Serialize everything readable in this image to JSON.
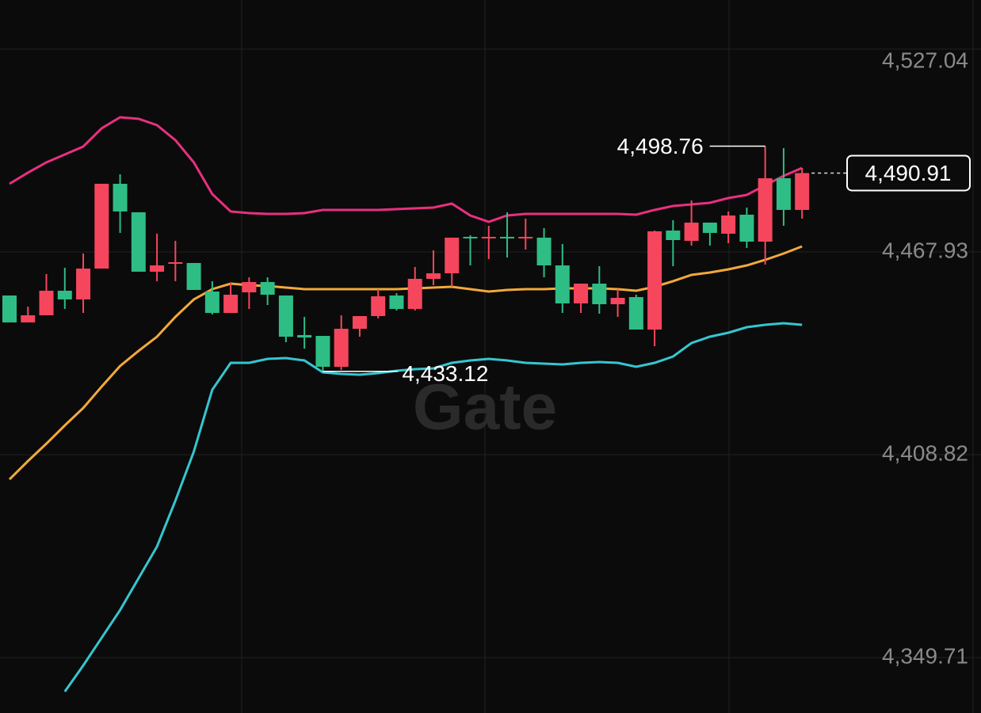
{
  "chart_data": {
    "type": "candlestick",
    "open": [
      4447.38,
      4449.46,
      4456.62,
      4454.08,
      4463.08,
      4487.79,
      4479.71,
      4462.16,
      4464.0,
      4464.93,
      4456.85,
      4450.15,
      4455.46,
      4459.16,
      4455.46,
      4443.22,
      4442.99,
      4434.45,
      4445.53,
      4449.23,
      4455.0,
      4451.31,
      4460.08,
      4461.7,
      4472.09,
      4471.86,
      4472.32,
      4471.86,
      4472.32,
      4464.0,
      4452.92,
      4458.69,
      4452.69,
      4454.54,
      4445.3,
      4473.93,
      4471.39,
      4476.47,
      4473.47,
      4478.55,
      4470.93,
      4489.4,
      4480.17,
      4490.91
    ],
    "high": [
      4455.23,
      4452.0,
      4461.46,
      4463.31,
      4467.47,
      4487.79,
      4490.56,
      4479.48,
      4473.24,
      4471.16,
      4464.7,
      4459.39,
      4458.92,
      4460.54,
      4460.54,
      4455.23,
      4449.0,
      4443.45,
      4449.46,
      4449.23,
      4457.08,
      4455.92,
      4463.54,
      4468.39,
      4472.09,
      4472.78,
      4475.55,
      4479.48,
      4477.63,
      4474.86,
      4470.24,
      4458.69,
      4463.77,
      4457.08,
      4455.46,
      4474.16,
      4477.17,
      4482.94,
      4476.47,
      4479.71,
      4480.86,
      4498.76,
      4498.18,
      4492.41
    ],
    "low": [
      4447.38,
      4447.38,
      4449.46,
      4451.31,
      4450.15,
      4463.08,
      4473.47,
      4462.16,
      4459.39,
      4459.39,
      4456.85,
      4449.69,
      4450.15,
      4451.31,
      4452.46,
      4441.61,
      4439.76,
      4433.12,
      4433.53,
      4443.22,
      4448.53,
      4450.84,
      4450.84,
      4458.23,
      4457.77,
      4464.0,
      4465.85,
      4466.31,
      4468.62,
      4460.54,
      4450.15,
      4450.15,
      4449.92,
      4449.0,
      4445.3,
      4440.45,
      4463.77,
      4469.78,
      4469.78,
      4470.47,
      4469.08,
      4464.24,
      4475.55,
      4477.63
    ],
    "close": [
      4455.23,
      4447.38,
      4449.46,
      4456.62,
      4454.08,
      4463.08,
      4487.79,
      4479.48,
      4462.16,
      4464.47,
      4464.7,
      4456.38,
      4450.15,
      4456.15,
      4459.16,
      4455.23,
      4443.69,
      4443.45,
      4434.45,
      4445.53,
      4449.23,
      4455.23,
      4451.31,
      4460.08,
      4461.7,
      4472.32,
      4471.86,
      4472.32,
      4471.86,
      4472.09,
      4464.0,
      4452.92,
      4458.69,
      4452.69,
      4454.77,
      4445.3,
      4474.16,
      4471.16,
      4476.47,
      4473.24,
      4478.78,
      4470.93,
      4489.4,
      4480.17
    ],
    "up_color": "#2ebd85",
    "down_color": "#f6465d",
    "bands": [
      {
        "color": "#e8307f",
        "values": [
          4487.79,
          4491.02,
          4494.02,
          4496.33,
          4498.64,
          4503.95,
          4507.18,
          4506.72,
          4504.87,
          4500.49,
          4494.02,
          4484.79,
          4479.71,
          4479.24,
          4479.01,
          4479.01,
          4479.24,
          4480.17,
          4480.17,
          4480.17,
          4480.17,
          4480.4,
          4480.63,
          4480.86,
          4482.01,
          4478.55,
          4476.7,
          4478.55,
          4479.01,
          4479.01,
          4479.01,
          4479.01,
          4479.01,
          4479.01,
          4478.78,
          4480.17,
          4481.32,
          4481.78,
          4482.25,
          4483.63,
          4484.55,
          4487.33,
          4490.1,
          4492.41
        ]
      },
      {
        "color": "#f2a93b",
        "values": [
          4401.66,
          4406.97,
          4412.05,
          4417.36,
          4422.44,
          4428.68,
          4434.68,
          4439.07,
          4443.22,
          4449.0,
          4454.08,
          4457.08,
          4458.69,
          4458.23,
          4458.0,
          4457.54,
          4457.08,
          4457.08,
          4457.08,
          4457.08,
          4457.08,
          4457.08,
          4457.31,
          4457.54,
          4457.77,
          4457.08,
          4456.38,
          4456.85,
          4457.08,
          4457.08,
          4457.31,
          4457.31,
          4457.31,
          4457.08,
          4456.62,
          4457.77,
          4459.39,
          4461.23,
          4461.93,
          4462.85,
          4464.0,
          4465.62,
          4467.47,
          4469.55
        ]
      },
      {
        "color": "#35c6d0",
        "values": [
          null,
          null,
          null,
          4339.78,
          4347.4,
          4355.48,
          4363.56,
          4372.8,
          4382.04,
          4395.43,
          4409.74,
          4427.75,
          4435.6,
          4435.6,
          4436.76,
          4436.99,
          4436.3,
          4432.83,
          4432.37,
          4432.14,
          4432.6,
          4433.29,
          4433.76,
          4433.99,
          4435.6,
          4436.3,
          4436.76,
          4436.3,
          4435.6,
          4435.37,
          4435.14,
          4435.6,
          4435.83,
          4435.6,
          4434.45,
          4435.6,
          4437.45,
          4441.38,
          4443.22,
          4444.38,
          4445.99,
          4446.69,
          4447.15,
          4446.69
        ]
      }
    ],
    "ylim": [
      4333.55,
      4541.35
    ],
    "yticks": [
      {
        "value": 4349.71,
        "label": "4,349.71"
      },
      {
        "value": 4408.82,
        "label": "4,408.82"
      },
      {
        "value": 4467.93,
        "label": "4,467.93"
      },
      {
        "value": 4527.04,
        "label": "4,527.04"
      }
    ],
    "grid": true,
    "last_price": {
      "value": 4490.91,
      "label": "4,490.91"
    },
    "high_marker": {
      "value": 4498.76,
      "label": "4,498.76"
    },
    "low_marker": {
      "value": 4433.12,
      "label": "4,433.12"
    },
    "watermark": "Gate"
  }
}
